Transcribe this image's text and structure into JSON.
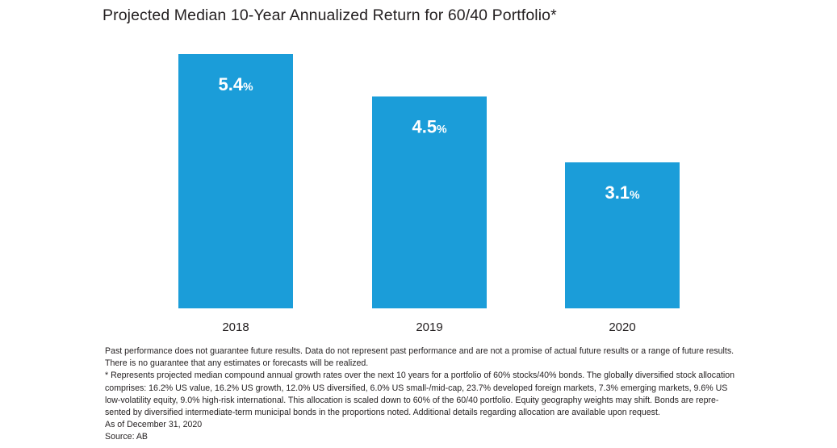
{
  "chart_data": {
    "type": "bar",
    "title": "Projected Median 10-Year Annualized Return for 60/40 Portfolio*",
    "categories": [
      "2018",
      "2019",
      "2020"
    ],
    "values": [
      5.4,
      4.5,
      3.1
    ],
    "value_unit": "%",
    "ylim": [
      0,
      5.4
    ],
    "grid": false,
    "bar_color": "#1b9dd9",
    "data_labels": [
      {
        "number": "5.4",
        "unit": "%"
      },
      {
        "number": "4.5",
        "unit": "%"
      },
      {
        "number": "3.1",
        "unit": "%"
      }
    ]
  },
  "footnotes": [
    "Past performance does not guarantee future results. Data do not represent past performance and are not a promise of actual future results or a range of future results.",
    "There is no guarantee that any estimates or forecasts will be realized.",
    "* Represents projected median compound annual growth rates over the next 10 years for a portfolio of 60% stocks/40% bonds. The globally diversified stock allocation",
    "comprises: 16.2% US value, 16.2% US growth, 12.0% US diversified, 6.0% US small-/mid-cap, 23.7% developed foreign markets, 7.3% emerging markets, 9.6% US",
    "low-volatility equity, 9.0% high-risk international. This allocation is scaled down to 60% of the 60/40 portfolio. Equity geography weights may shift. Bonds are repre-",
    "sented by diversified intermediate-term municipal bonds in the proportions noted. Additional details regarding allocation are available upon request.",
    "As of December 31, 2020",
    "Source: AB"
  ]
}
